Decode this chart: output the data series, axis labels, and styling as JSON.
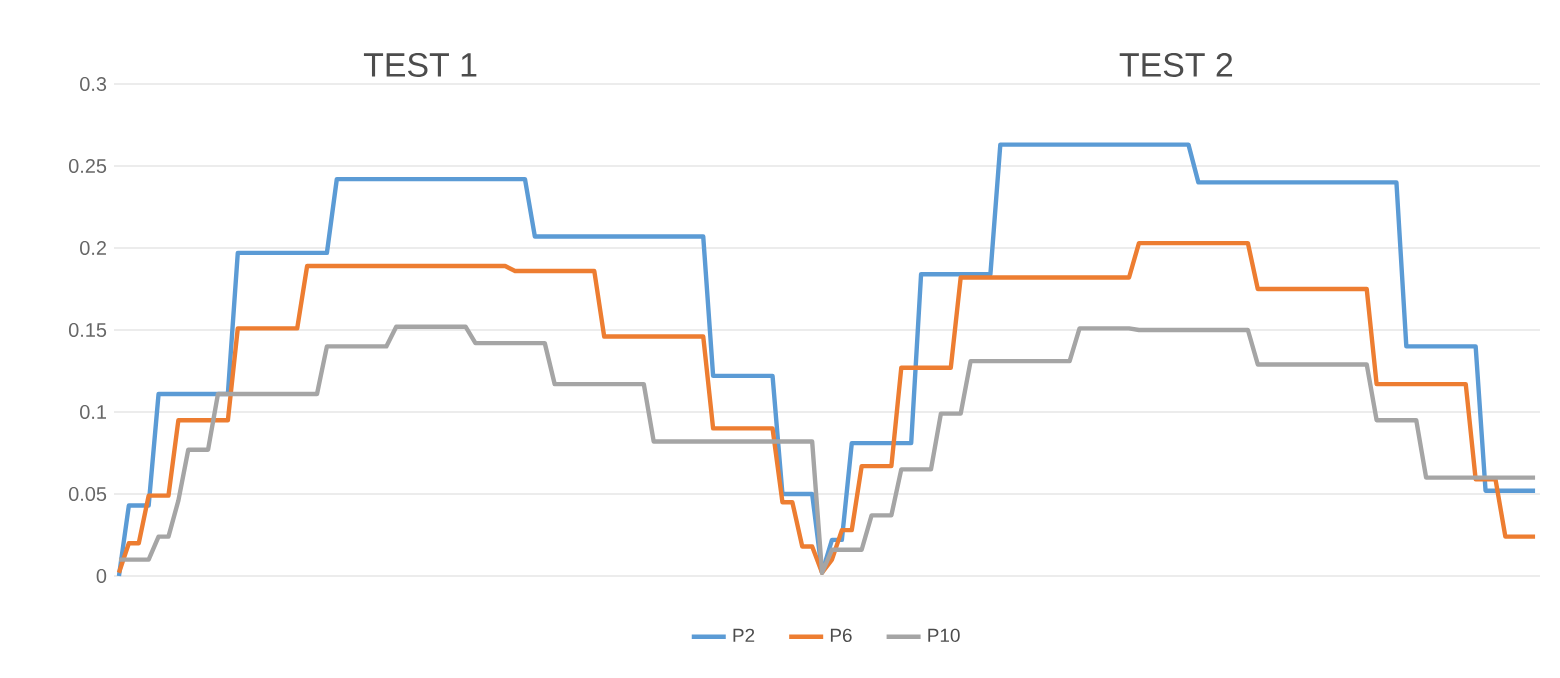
{
  "chart_data": {
    "type": "line",
    "annotations": [
      "TEST 1",
      "TEST 2"
    ],
    "categories": [
      null,
      null,
      null,
      null,
      null,
      null,
      null,
      null,
      null,
      null,
      null,
      null,
      null,
      null,
      null,
      null,
      null,
      null,
      null,
      null,
      null,
      null,
      null,
      null,
      null,
      null,
      null,
      null,
      null,
      null,
      null,
      null,
      null,
      null,
      null,
      null,
      null,
      null,
      null,
      null,
      null,
      null,
      null,
      null,
      null,
      null,
      null,
      null,
      null,
      null,
      null,
      null,
      null,
      null,
      null,
      null,
      null,
      null,
      null,
      null,
      null,
      null,
      null,
      null,
      null,
      null,
      null,
      null,
      null,
      null,
      null,
      null,
      null,
      null,
      null,
      null,
      null,
      null,
      null,
      null,
      null,
      null,
      null,
      null,
      null,
      null,
      null,
      null,
      null,
      null,
      null,
      null,
      null,
      null,
      null,
      null,
      null,
      null,
      null,
      null,
      null,
      null,
      null,
      null,
      null,
      null,
      null,
      null,
      null,
      null,
      null,
      null,
      null,
      null,
      null,
      null,
      null,
      null,
      null,
      null,
      null,
      null,
      null,
      null,
      null,
      null,
      null,
      null,
      null,
      null,
      null,
      null,
      null,
      null,
      null,
      null,
      null,
      null,
      null,
      null,
      null,
      null,
      null,
      null
    ],
    "ylim": [
      0,
      0.3
    ],
    "yticks": [
      0,
      0.05,
      0.1,
      0.15,
      0.2,
      0.25,
      0.3
    ],
    "tick_labels": "y",
    "grid": "y",
    "legend": "bottom",
    "marker": "none",
    "line_style": "solid",
    "series": [
      {
        "name": "P2",
        "color": "#5b9bd5",
        "values": [
          0,
          0.043,
          0.043,
          0.043,
          0.111,
          0.111,
          0.111,
          0.111,
          0.111,
          0.111,
          0.111,
          0.111,
          0.197,
          0.197,
          0.197,
          0.197,
          0.197,
          0.197,
          0.197,
          0.197,
          0.197,
          0.197,
          0.242,
          0.242,
          0.242,
          0.242,
          0.242,
          0.242,
          0.242,
          0.242,
          0.242,
          0.242,
          0.242,
          0.242,
          0.242,
          0.242,
          0.242,
          0.242,
          0.242,
          0.242,
          0.242,
          0.242,
          0.207,
          0.207,
          0.207,
          0.207,
          0.207,
          0.207,
          0.207,
          0.207,
          0.207,
          0.207,
          0.207,
          0.207,
          0.207,
          0.207,
          0.207,
          0.207,
          0.207,
          0.207,
          0.122,
          0.122,
          0.122,
          0.122,
          0.122,
          0.122,
          0.122,
          0.05,
          0.05,
          0.05,
          0.05,
          0.002,
          0.022,
          0.022,
          0.081,
          0.081,
          0.081,
          0.081,
          0.081,
          0.081,
          0.081,
          0.184,
          0.184,
          0.184,
          0.184,
          0.184,
          0.184,
          0.184,
          0.184,
          0.263,
          0.263,
          0.263,
          0.263,
          0.263,
          0.263,
          0.263,
          0.263,
          0.263,
          0.263,
          0.263,
          0.263,
          0.263,
          0.263,
          0.263,
          0.263,
          0.263,
          0.263,
          0.263,
          0.263,
          0.24,
          0.24,
          0.24,
          0.24,
          0.24,
          0.24,
          0.24,
          0.24,
          0.24,
          0.24,
          0.24,
          0.24,
          0.24,
          0.24,
          0.24,
          0.24,
          0.24,
          0.24,
          0.24,
          0.24,
          0.24,
          0.14,
          0.14,
          0.14,
          0.14,
          0.14,
          0.14,
          0.14,
          0.14,
          0.052,
          0.052,
          0.052,
          0.052,
          0.052,
          0.052
        ]
      },
      {
        "name": "P6",
        "color": "#ed7d31",
        "values": [
          0.002,
          0.02,
          0.02,
          0.049,
          0.049,
          0.049,
          0.095,
          0.095,
          0.095,
          0.095,
          0.095,
          0.095,
          0.151,
          0.151,
          0.151,
          0.151,
          0.151,
          0.151,
          0.151,
          0.189,
          0.189,
          0.189,
          0.189,
          0.189,
          0.189,
          0.189,
          0.189,
          0.189,
          0.189,
          0.189,
          0.189,
          0.189,
          0.189,
          0.189,
          0.189,
          0.189,
          0.189,
          0.189,
          0.189,
          0.189,
          0.186,
          0.186,
          0.186,
          0.186,
          0.186,
          0.186,
          0.186,
          0.186,
          0.186,
          0.146,
          0.146,
          0.146,
          0.146,
          0.146,
          0.146,
          0.146,
          0.146,
          0.146,
          0.146,
          0.146,
          0.09,
          0.09,
          0.09,
          0.09,
          0.09,
          0.09,
          0.09,
          0.045,
          0.045,
          0.018,
          0.018,
          0.002,
          0.01,
          0.028,
          0.028,
          0.067,
          0.067,
          0.067,
          0.067,
          0.127,
          0.127,
          0.127,
          0.127,
          0.127,
          0.127,
          0.182,
          0.182,
          0.182,
          0.182,
          0.182,
          0.182,
          0.182,
          0.182,
          0.182,
          0.182,
          0.182,
          0.182,
          0.182,
          0.182,
          0.182,
          0.182,
          0.182,
          0.182,
          0.203,
          0.203,
          0.203,
          0.203,
          0.203,
          0.203,
          0.203,
          0.203,
          0.203,
          0.203,
          0.203,
          0.203,
          0.175,
          0.175,
          0.175,
          0.175,
          0.175,
          0.175,
          0.175,
          0.175,
          0.175,
          0.175,
          0.175,
          0.175,
          0.117,
          0.117,
          0.117,
          0.117,
          0.117,
          0.117,
          0.117,
          0.117,
          0.117,
          0.117,
          0.059,
          0.059,
          0.059,
          0.024,
          0.024,
          0.024,
          0.024
        ]
      },
      {
        "name": "P10",
        "color": "#a5a5a5",
        "values": [
          0.01,
          0.01,
          0.01,
          0.01,
          0.024,
          0.024,
          0.046,
          0.077,
          0.077,
          0.077,
          0.111,
          0.111,
          0.111,
          0.111,
          0.111,
          0.111,
          0.111,
          0.111,
          0.111,
          0.111,
          0.111,
          0.14,
          0.14,
          0.14,
          0.14,
          0.14,
          0.14,
          0.14,
          0.152,
          0.152,
          0.152,
          0.152,
          0.152,
          0.152,
          0.152,
          0.152,
          0.142,
          0.142,
          0.142,
          0.142,
          0.142,
          0.142,
          0.142,
          0.142,
          0.117,
          0.117,
          0.117,
          0.117,
          0.117,
          0.117,
          0.117,
          0.117,
          0.117,
          0.117,
          0.082,
          0.082,
          0.082,
          0.082,
          0.082,
          0.082,
          0.082,
          0.082,
          0.082,
          0.082,
          0.082,
          0.082,
          0.082,
          0.082,
          0.082,
          0.082,
          0.082,
          0.002,
          0.016,
          0.016,
          0.016,
          0.016,
          0.037,
          0.037,
          0.037,
          0.065,
          0.065,
          0.065,
          0.065,
          0.099,
          0.099,
          0.099,
          0.131,
          0.131,
          0.131,
          0.131,
          0.131,
          0.131,
          0.131,
          0.131,
          0.131,
          0.131,
          0.131,
          0.151,
          0.151,
          0.151,
          0.151,
          0.151,
          0.151,
          0.15,
          0.15,
          0.15,
          0.15,
          0.15,
          0.15,
          0.15,
          0.15,
          0.15,
          0.15,
          0.15,
          0.15,
          0.129,
          0.129,
          0.129,
          0.129,
          0.129,
          0.129,
          0.129,
          0.129,
          0.129,
          0.129,
          0.129,
          0.129,
          0.095,
          0.095,
          0.095,
          0.095,
          0.095,
          0.06,
          0.06,
          0.06,
          0.06,
          0.06,
          0.06,
          0.06,
          0.06,
          0.06,
          0.06,
          0.06,
          0.06
        ]
      }
    ]
  }
}
